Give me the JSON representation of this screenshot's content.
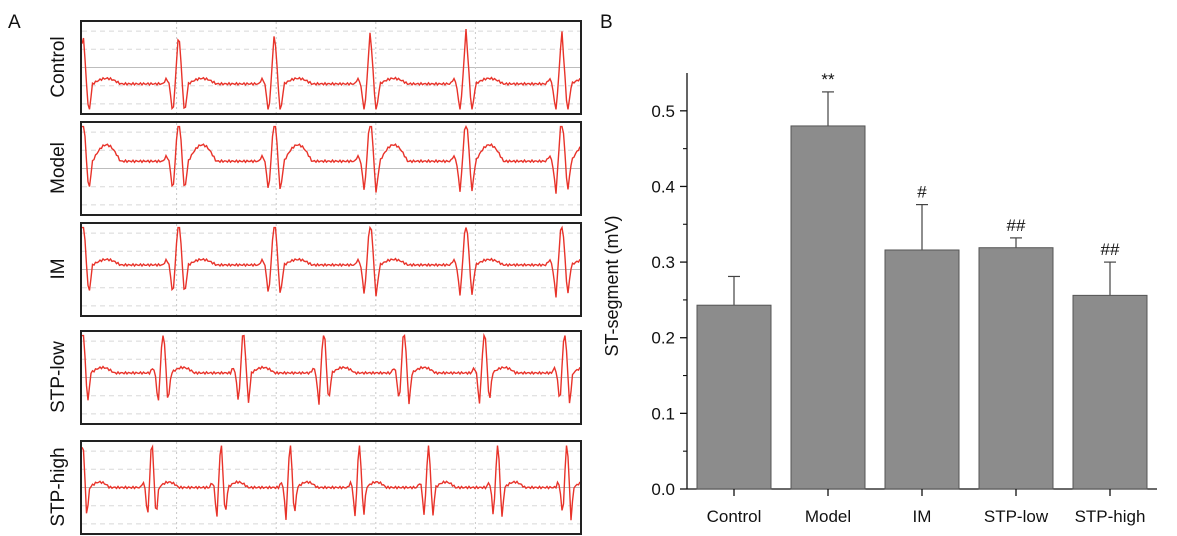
{
  "panel_a": {
    "letter": "A",
    "traces": [
      {
        "label": "Control"
      },
      {
        "label": "Model"
      },
      {
        "label": "IM"
      },
      {
        "label": "STP-low"
      },
      {
        "label": "STP-high"
      }
    ],
    "trace_color": "#e8332a"
  },
  "panel_b": {
    "letter": "B"
  },
  "chart_data": {
    "type": "bar",
    "categories": [
      "Control",
      "Model",
      "IM",
      "STP-low",
      "STP-high"
    ],
    "values": [
      0.243,
      0.48,
      0.316,
      0.319,
      0.256
    ],
    "errors": [
      0.038,
      0.045,
      0.06,
      0.013,
      0.044
    ],
    "annotations": [
      "",
      "**",
      "#",
      "##",
      "##"
    ],
    "ylabel": "ST-segment (mV)",
    "xlabel": "",
    "ylim": [
      0,
      0.55
    ],
    "yticks": [
      "0.0",
      "0.1",
      "0.2",
      "0.3",
      "0.4",
      "0.5"
    ],
    "bar_color": "#8c8c8c",
    "grid": false
  }
}
